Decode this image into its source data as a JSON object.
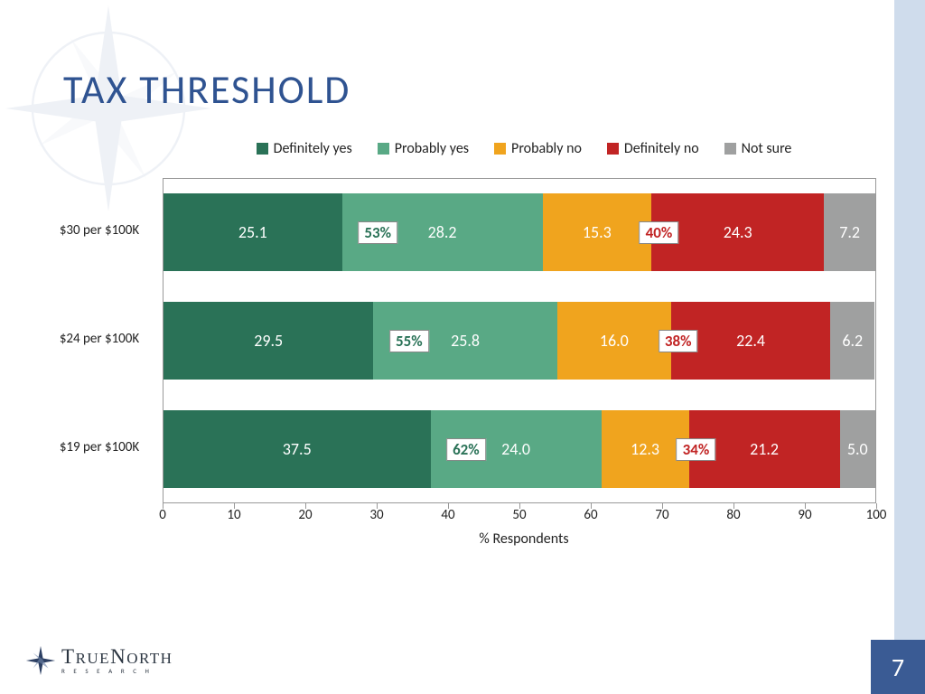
{
  "page": {
    "title": "TAX THRESHOLD",
    "number": "7"
  },
  "brand": {
    "name_a": "T",
    "name_b": "RUE",
    "name_c": "N",
    "name_d": "ORTH",
    "sub": "R  E  S  E  A  R  C  H"
  },
  "legend": [
    {
      "label": "Definitely yes",
      "color": "#2a7257"
    },
    {
      "label": "Probably yes",
      "color": "#59a985"
    },
    {
      "label": "Probably no",
      "color": "#f0a41e"
    },
    {
      "label": "Definitely no",
      "color": "#c12424"
    },
    {
      "label": "Not sure",
      "color": "#9fa0a0"
    }
  ],
  "chart": {
    "xlabel": "% Respondents",
    "xlim": [
      0,
      100
    ],
    "xticks": [
      0,
      10,
      20,
      30,
      40,
      50,
      60,
      70,
      80,
      90,
      100
    ],
    "bar_height_pct": 86,
    "gap_pct": 120,
    "rows": [
      {
        "label": "$30 per $100K",
        "values": [
          25.1,
          28.2,
          15.3,
          24.3,
          7.2
        ],
        "yes_callout": "53%",
        "no_callout": "40%",
        "yes_color": "#2a7257",
        "no_color": "#c12424"
      },
      {
        "label": "$24 per $100K",
        "values": [
          29.5,
          25.8,
          16.0,
          22.4,
          6.2
        ],
        "yes_callout": "55%",
        "no_callout": "38%",
        "yes_color": "#2a7257",
        "no_color": "#c12424"
      },
      {
        "label": "$19 per $100K",
        "values": [
          37.5,
          24.0,
          12.3,
          21.2,
          5.0
        ],
        "yes_callout": "62%",
        "no_callout": "34%",
        "yes_color": "#2a7257",
        "no_color": "#c12424"
      }
    ],
    "value_fontsize": 18,
    "label_fontsize": 15
  }
}
